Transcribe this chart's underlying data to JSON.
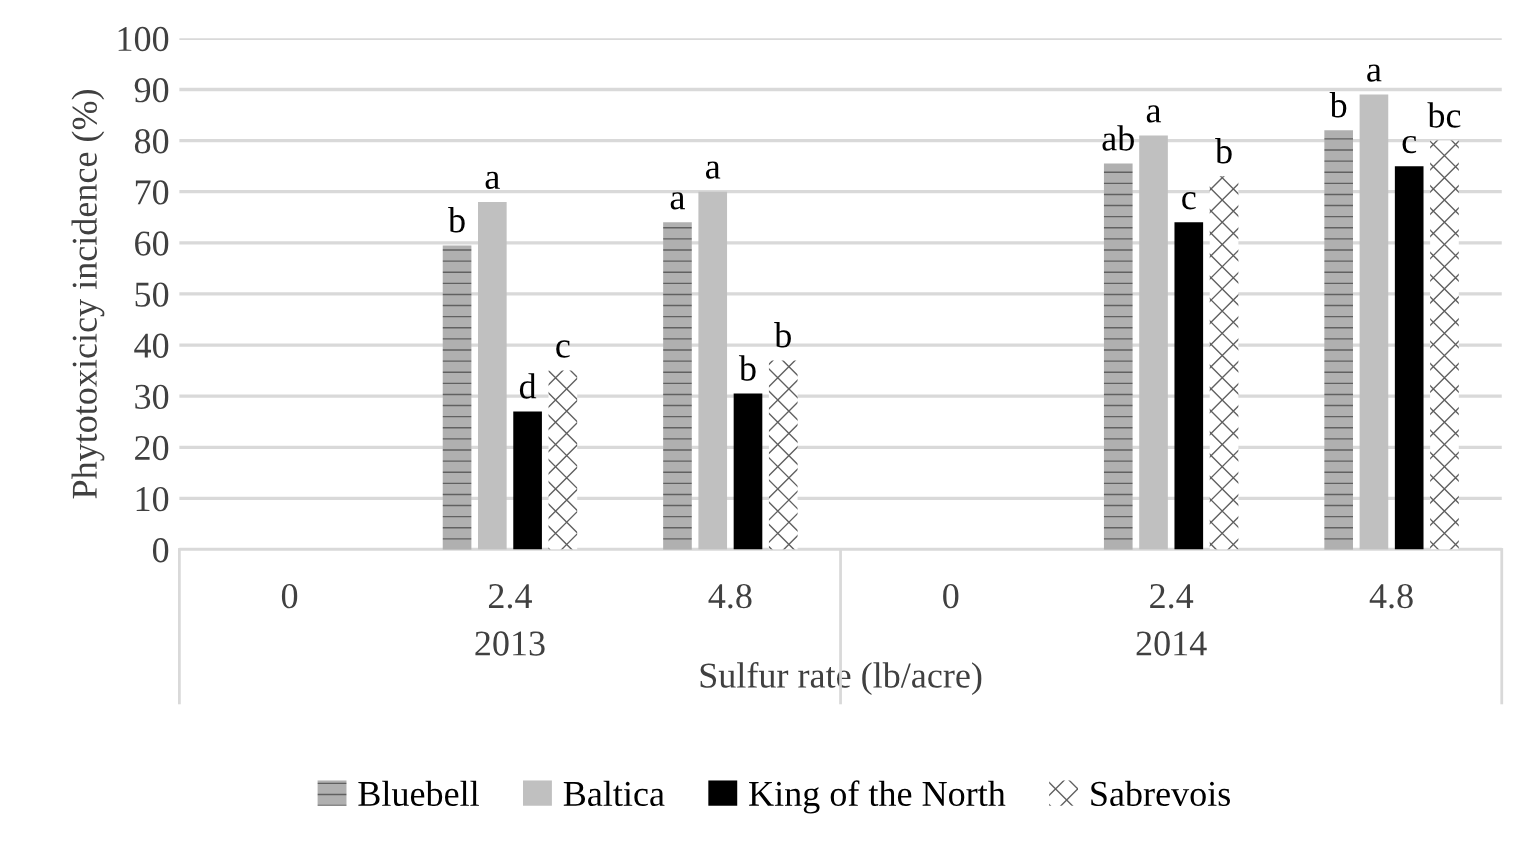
{
  "chart_data": {
    "type": "bar",
    "ylabel": "Phytotoxicicy incidence (%)",
    "xlabel": "Sulfur rate (lb/acre)",
    "categories": [
      "0",
      "2.4",
      "4.8",
      "0",
      "2.4",
      "4.8"
    ],
    "annotations": [
      "2013",
      "2014"
    ],
    "series": [
      {
        "name": "Bluebell",
        "color": "#b0b0b0",
        "values": [
          null,
          59.5,
          64,
          null,
          75.5,
          82
        ],
        "value_labels": [
          null,
          "b",
          "a",
          null,
          "ab",
          "b"
        ]
      },
      {
        "name": "Baltica",
        "color": "#c0c0c0",
        "values": [
          null,
          68,
          70,
          null,
          81,
          89
        ],
        "value_labels": [
          null,
          "a",
          "a",
          null,
          "a",
          "a"
        ]
      },
      {
        "name": "King of the North",
        "color": "#000000",
        "values": [
          null,
          27,
          30.5,
          null,
          64,
          75
        ],
        "value_labels": [
          null,
          "d",
          "b",
          null,
          "c",
          "c"
        ]
      },
      {
        "name": "Sabrevois",
        "color": "#ffffff",
        "values": [
          null,
          35,
          37,
          null,
          73,
          80
        ],
        "value_labels": [
          null,
          "c",
          "b",
          null,
          "b",
          "bc"
        ]
      }
    ],
    "ylim": [
      0,
      100
    ],
    "yticks": [
      0,
      10,
      20,
      30,
      40,
      50,
      60,
      70,
      80,
      90,
      100
    ],
    "grid": "y",
    "legend": "bottom"
  }
}
